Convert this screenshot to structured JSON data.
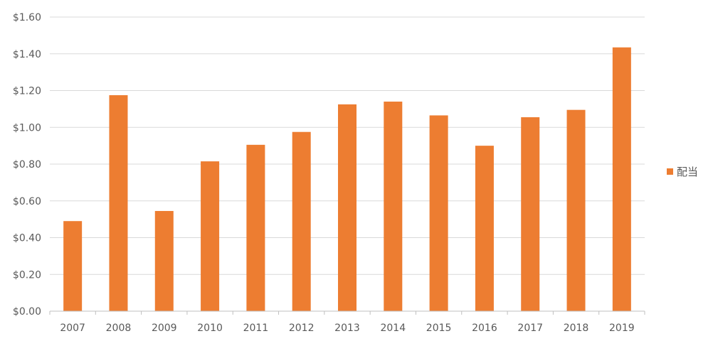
{
  "chart_data": {
    "type": "bar",
    "categories": [
      "2007",
      "2008",
      "2009",
      "2010",
      "2011",
      "2012",
      "2013",
      "2014",
      "2015",
      "2016",
      "2017",
      "2018",
      "2019"
    ],
    "series": [
      {
        "name": "配当",
        "color": "#ED7D31",
        "values": [
          0.49,
          1.175,
          0.545,
          0.815,
          0.905,
          0.975,
          1.125,
          1.14,
          1.065,
          0.9,
          1.055,
          1.095,
          1.435
        ]
      }
    ],
    "y_ticks": [
      "$0.00",
      "$0.20",
      "$0.40",
      "$0.60",
      "$0.80",
      "$1.00",
      "$1.20",
      "$1.40",
      "$1.60"
    ],
    "ylim": [
      0,
      1.6
    ],
    "grid": true,
    "legend_position": "right",
    "gridline_color": "#D9D9D9",
    "axis_color": "#BFBFBF"
  }
}
